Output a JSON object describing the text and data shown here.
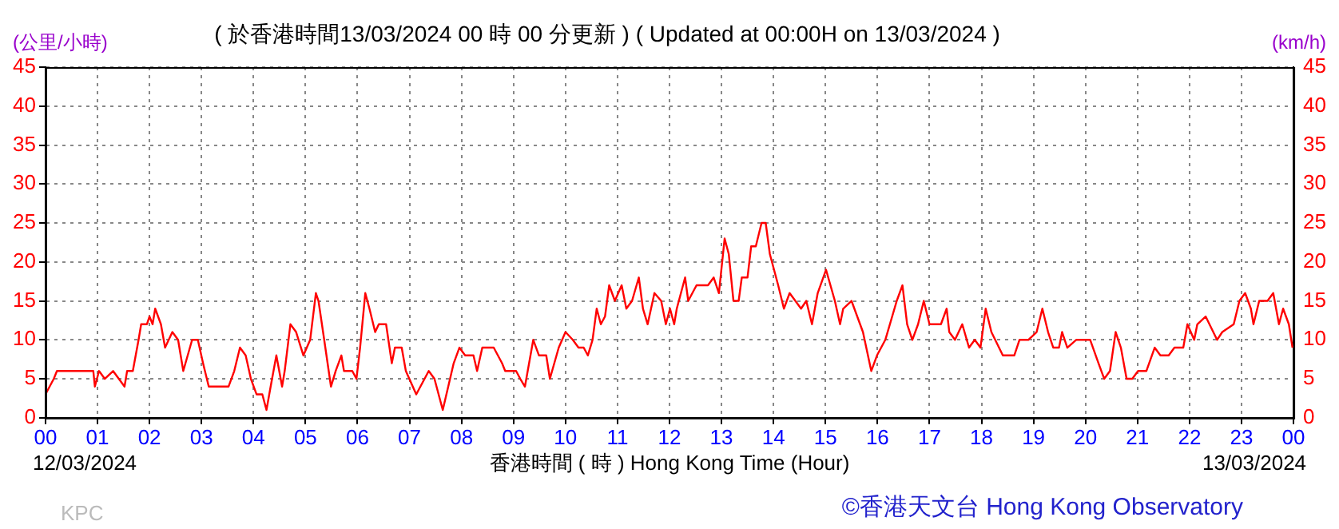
{
  "chart_data": {
    "type": "line",
    "title": "( 於香港時間13/03/2024 00 時 00 分更新 ) ( Updated at 00:00H on 13/03/2024 )",
    "ylabel": "(公里/小時)",
    "y2label": "(km/h)",
    "xlabel": "香港時間 ( 時 ) Hong Kong Time (Hour)",
    "annotations": [
      "12/03/2024",
      "13/03/2024",
      "KPC",
      "©香港天文台 Hong Kong Observatory"
    ],
    "x": [
      0,
      0.16,
      0.22,
      0.92,
      0.95,
      1.03,
      1.14,
      1.3,
      1.41,
      1.52,
      1.57,
      1.68,
      1.79,
      1.84,
      1.95,
      2.0,
      2.06,
      2.11,
      2.22,
      2.3,
      2.44,
      2.55,
      2.6,
      2.65,
      2.82,
      2.93,
      3.03,
      3.14,
      3.52,
      3.63,
      3.74,
      3.85,
      3.95,
      4.06,
      4.17,
      4.25,
      4.33,
      4.44,
      4.55,
      4.6,
      4.71,
      4.82,
      4.96,
      5.09,
      5.2,
      5.25,
      5.36,
      5.49,
      5.58,
      5.69,
      5.74,
      5.9,
      5.98,
      6.05,
      6.15,
      6.23,
      6.34,
      6.41,
      6.55,
      6.66,
      6.72,
      6.85,
      6.93,
      7.13,
      7.37,
      7.48,
      7.64,
      7.85,
      7.96,
      8.07,
      8.23,
      8.3,
      8.4,
      8.62,
      8.78,
      8.84,
      9.05,
      9.13,
      9.22,
      9.38,
      9.49,
      9.63,
      9.7,
      9.87,
      10.0,
      10.14,
      10.25,
      10.35,
      10.43,
      10.52,
      10.6,
      10.68,
      10.76,
      10.84,
      10.95,
      11.08,
      11.17,
      11.28,
      11.41,
      11.49,
      11.58,
      11.71,
      11.84,
      11.93,
      12.01,
      12.09,
      12.14,
      12.3,
      12.36,
      12.52,
      12.74,
      12.85,
      12.95,
      13.06,
      13.14,
      13.23,
      13.33,
      13.39,
      13.5,
      13.57,
      13.66,
      13.77,
      13.85,
      13.93,
      14.09,
      14.2,
      14.31,
      14.42,
      14.53,
      14.63,
      14.74,
      14.85,
      15.01,
      15.18,
      15.28,
      15.34,
      15.5,
      15.72,
      15.88,
      15.99,
      16.15,
      16.37,
      16.48,
      16.57,
      16.67,
      16.78,
      16.89,
      17.0,
      17.22,
      17.33,
      17.38,
      17.49,
      17.63,
      17.76,
      17.87,
      17.98,
      18.08,
      18.19,
      18.41,
      18.63,
      18.73,
      18.9,
      19.06,
      19.17,
      19.28,
      19.38,
      19.49,
      19.55,
      19.65,
      19.82,
      20.09,
      20.25,
      20.36,
      20.47,
      20.58,
      20.68,
      20.79,
      20.9,
      21.01,
      21.17,
      21.33,
      21.44,
      21.6,
      21.71,
      21.88,
      21.96,
      22.09,
      22.15,
      22.31,
      22.53,
      22.63,
      22.85,
      22.96,
      23.07,
      23.18,
      23.23,
      23.34,
      23.5,
      23.61,
      23.72,
      23.8,
      23.91,
      23.98
    ],
    "series": [
      {
        "color": "#ff0000",
        "values": [
          3,
          5,
          6,
          6,
          4,
          6,
          5,
          6,
          5,
          4,
          6,
          6,
          10,
          12,
          12,
          13,
          12,
          14,
          12,
          9,
          11,
          10,
          8,
          6,
          10,
          10,
          7,
          4,
          4,
          6,
          9,
          8,
          5,
          3,
          3,
          1,
          4,
          8,
          4,
          6,
          12,
          11,
          8,
          10,
          16,
          15,
          10,
          4,
          6,
          8,
          6,
          6,
          5,
          9,
          16,
          14,
          11,
          12,
          12,
          7,
          9,
          9,
          6,
          3,
          6,
          5,
          1,
          7,
          9,
          8,
          8,
          6,
          9,
          9,
          7,
          6,
          6,
          5,
          4,
          10,
          8,
          8,
          5,
          9,
          11,
          10,
          9,
          9,
          8,
          10,
          14,
          12,
          13,
          17,
          15,
          17,
          14,
          15,
          18,
          14,
          12,
          16,
          15,
          12,
          14,
          12,
          14,
          18,
          15,
          17,
          17,
          18,
          16,
          23,
          21,
          15,
          15,
          18,
          18,
          22,
          22,
          25,
          25,
          21,
          17,
          14,
          16,
          15,
          14,
          15,
          12,
          16,
          19,
          15,
          12,
          14,
          15,
          11,
          6,
          8,
          10,
          15,
          17,
          12,
          10,
          12,
          15,
          12,
          12,
          14,
          11,
          10,
          12,
          9,
          10,
          9,
          14,
          11,
          8,
          8,
          10,
          10,
          11,
          14,
          11,
          9,
          9,
          11,
          9,
          10,
          10,
          7,
          5,
          6,
          11,
          9,
          5,
          5,
          6,
          6,
          9,
          8,
          8,
          9,
          9,
          12,
          10,
          12,
          13,
          10,
          11,
          12,
          15,
          16,
          14,
          12,
          15,
          15,
          16,
          12,
          14,
          12,
          9
        ]
      }
    ],
    "xlim": [
      0,
      24
    ],
    "xticks": [
      {
        "value": 0,
        "label": "00"
      },
      {
        "value": 1,
        "label": "01"
      },
      {
        "value": 2,
        "label": "02"
      },
      {
        "value": 3,
        "label": "03"
      },
      {
        "value": 4,
        "label": "04"
      },
      {
        "value": 5,
        "label": "05"
      },
      {
        "value": 6,
        "label": "06"
      },
      {
        "value": 7,
        "label": "07"
      },
      {
        "value": 8,
        "label": "08"
      },
      {
        "value": 9,
        "label": "09"
      },
      {
        "value": 10,
        "label": "10"
      },
      {
        "value": 11,
        "label": "11"
      },
      {
        "value": 12,
        "label": "12"
      },
      {
        "value": 13,
        "label": "13"
      },
      {
        "value": 14,
        "label": "14"
      },
      {
        "value": 15,
        "label": "15"
      },
      {
        "value": 16,
        "label": "16"
      },
      {
        "value": 17,
        "label": "17"
      },
      {
        "value": 18,
        "label": "18"
      },
      {
        "value": 19,
        "label": "19"
      },
      {
        "value": 20,
        "label": "20"
      },
      {
        "value": 21,
        "label": "21"
      },
      {
        "value": 22,
        "label": "22"
      },
      {
        "value": 23,
        "label": "23"
      },
      {
        "value": 24,
        "label": "00"
      }
    ],
    "ylim": [
      0,
      45
    ],
    "yticks": [
      0,
      5,
      10,
      15,
      20,
      25,
      30,
      35,
      40,
      45
    ],
    "y2lim": [
      0,
      45
    ],
    "y2ticks": [
      0,
      5,
      10,
      15,
      20,
      25,
      30,
      35,
      40,
      45
    ],
    "grid": true,
    "legend": false,
    "marker": "none",
    "line_style": "solid"
  }
}
